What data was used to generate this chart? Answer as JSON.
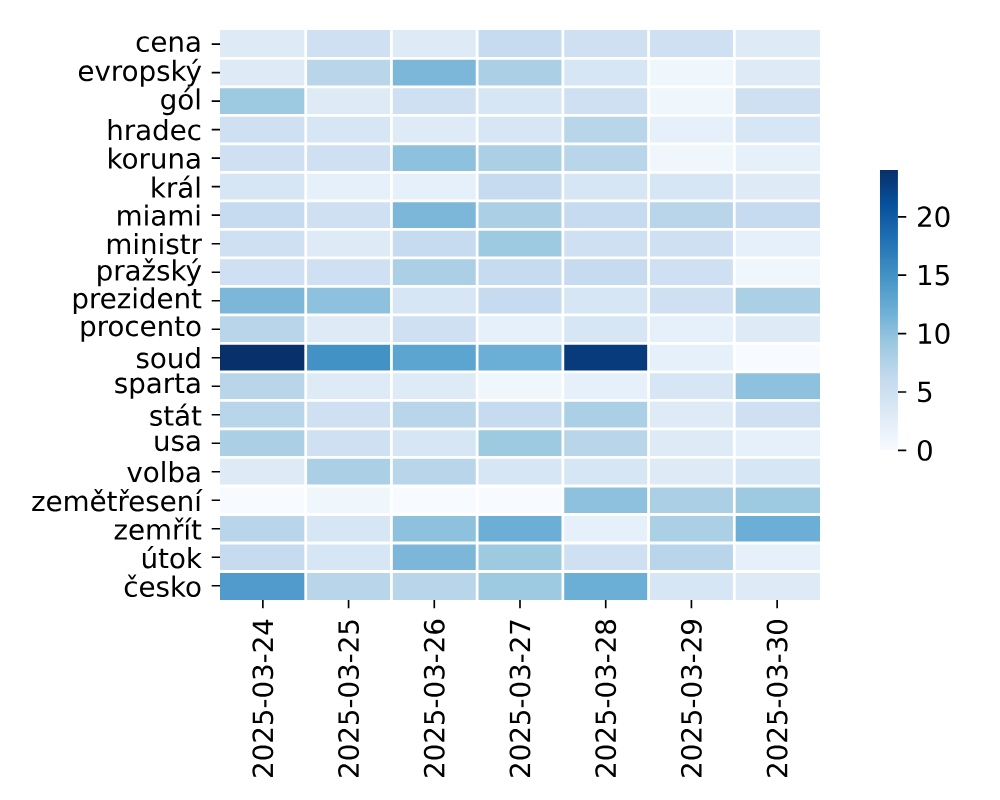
{
  "chart_data": {
    "type": "heatmap",
    "categories": [
      "2025-03-24",
      "2025-03-25",
      "2025-03-26",
      "2025-03-27",
      "2025-03-28",
      "2025-03-29",
      "2025-03-30"
    ],
    "y_categories": [
      "cena",
      "evropský",
      "gól",
      "hradec",
      "koruna",
      "král",
      "miami",
      "ministr",
      "pražský",
      "prezident",
      "procento",
      "soud",
      "sparta",
      "stát",
      "usa",
      "volba",
      "zemětřesení",
      "zemřít",
      "útok",
      "česko"
    ],
    "cells": [
      [
        3,
        5,
        3,
        6,
        5,
        5,
        3
      ],
      [
        3,
        7,
        11,
        8,
        4,
        1,
        3
      ],
      [
        9,
        3,
        5,
        4,
        5,
        1,
        5
      ],
      [
        5,
        4,
        3,
        4,
        7,
        2,
        4
      ],
      [
        5,
        5,
        10,
        8,
        7,
        1,
        2
      ],
      [
        4,
        2,
        2,
        6,
        4,
        4,
        3
      ],
      [
        6,
        5,
        11,
        8,
        6,
        7,
        6
      ],
      [
        5,
        3,
        6,
        9,
        5,
        5,
        2
      ],
      [
        5,
        5,
        8,
        6,
        6,
        5,
        1
      ],
      [
        11,
        10,
        4,
        6,
        4,
        5,
        8
      ],
      [
        7,
        3,
        5,
        2,
        4,
        2,
        3
      ],
      [
        24,
        15,
        13,
        12,
        23,
        2,
        0
      ],
      [
        7,
        3,
        3,
        1,
        2,
        4,
        10
      ],
      [
        7,
        5,
        7,
        6,
        8,
        3,
        5
      ],
      [
        8,
        5,
        4,
        9,
        7,
        3,
        2
      ],
      [
        3,
        8,
        7,
        4,
        4,
        3,
        4
      ],
      [
        0,
        1,
        0,
        0,
        10,
        8,
        9
      ],
      [
        7,
        4,
        10,
        12,
        2,
        8,
        12
      ],
      [
        6,
        4,
        11,
        9,
        5,
        7,
        2
      ],
      [
        14,
        7,
        7,
        9,
        12,
        4,
        3
      ]
    ],
    "clim": [
      0,
      24
    ],
    "cticks": [
      0,
      5,
      10,
      15,
      20
    ]
  }
}
